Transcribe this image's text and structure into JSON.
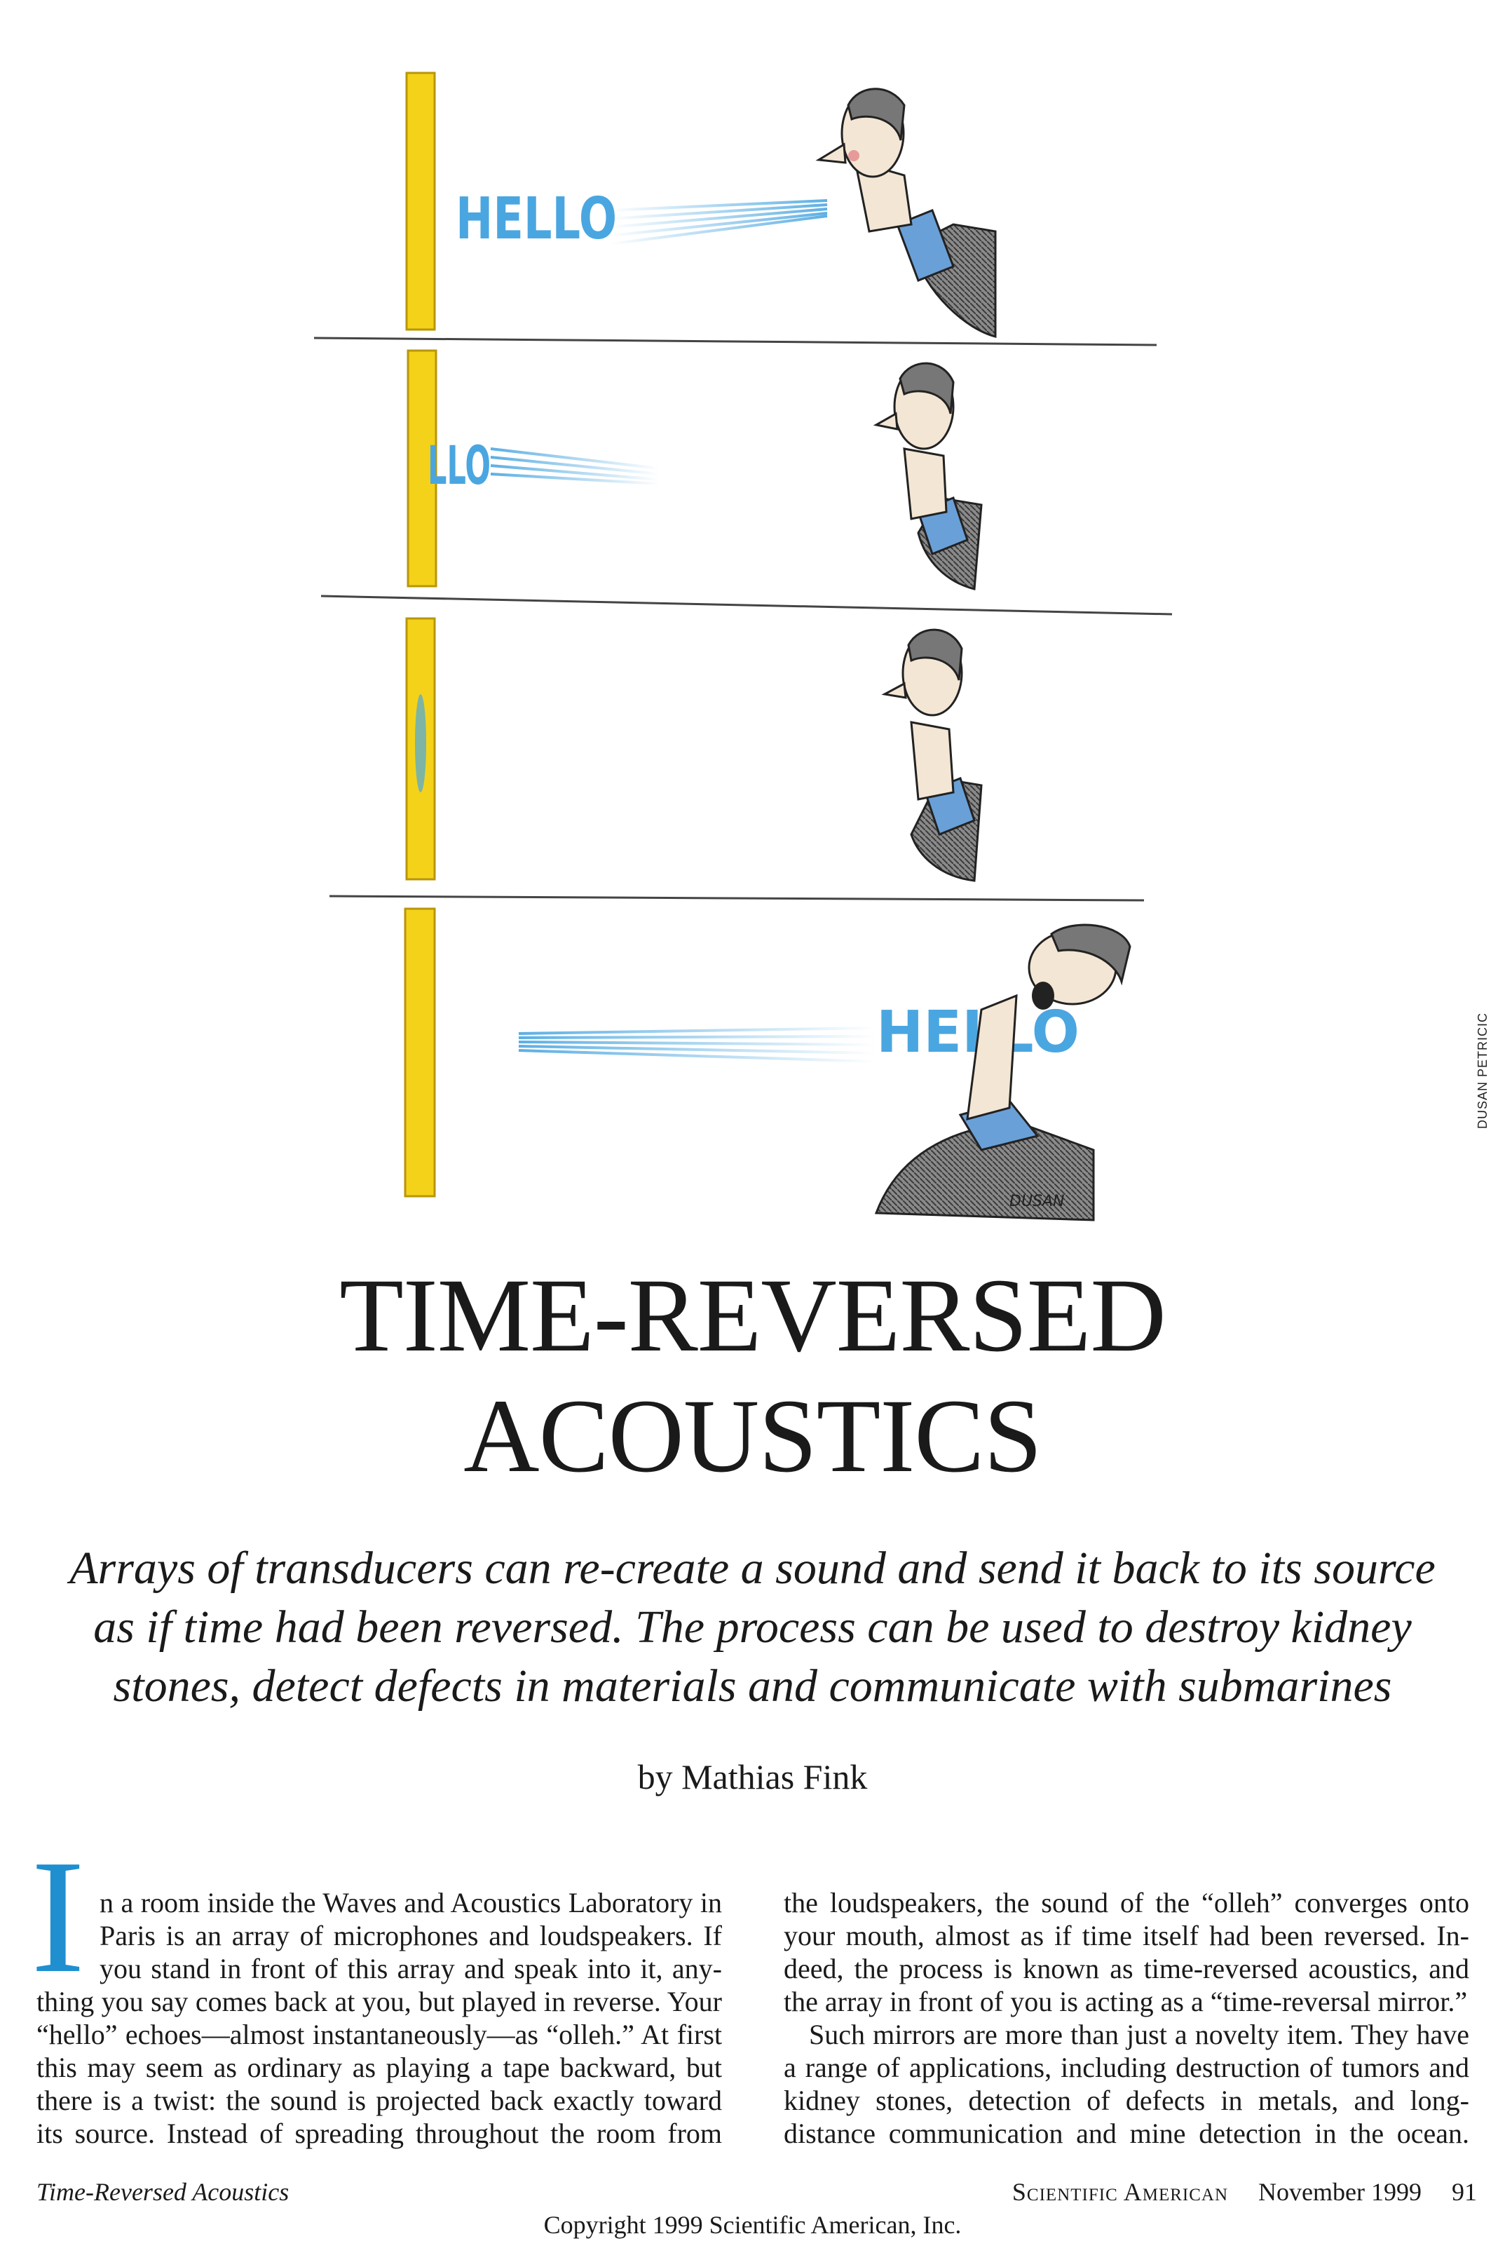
{
  "illustration": {
    "panel_text": [
      "HELLO",
      "LLO",
      "HELLO"
    ],
    "signature": "DUSAN",
    "colors": {
      "mirror": "#f5d21a",
      "letters": "#4aa6e0",
      "shirt": "#6aa0d8",
      "jacket": "#6b6b6b"
    }
  },
  "credit": "DUSAN PETRICIC",
  "title": {
    "line1": "TIME-REVERSED",
    "line2": "ACOUSTICS"
  },
  "deck": {
    "line1": "Arrays of transducers can re-create a sound and send it back to its source",
    "line2": "as if time had been reversed. The process can be used to destroy kidney",
    "line3": "stones, detect defects in materials and communicate with submarines"
  },
  "byline": "by Mathias Fink",
  "body": {
    "drop_cap": "I",
    "left": [
      "n a room inside the Waves and Acoustics Laboratory in",
      "Paris is an array of microphones and loudspeakers. If",
      "you stand in front of this array and speak into it, any-",
      "thing you say comes back at you, but played in reverse. Your",
      "“hello” echoes—almost instantaneously—as “olleh.” At first",
      "this may seem as ordinary as playing a tape backward, but",
      "there is a twist: the sound is projected back exactly toward",
      "its source. Instead of spreading throughout the room from"
    ],
    "right": [
      "the loudspeakers, the sound of the “olleh” converges onto",
      "your mouth, almost as if time itself had been reversed. In-",
      "deed, the process is known as time-reversed acoustics, and",
      "the array in front of you is acting as a “time-reversal mirror.”",
      "Such mirrors are more than just a novelty item. They have",
      "a range of applications, including destruction of tumors and",
      "kidney stones, detection of defects in metals, and long-",
      "distance communication and mine detection in the ocean."
    ]
  },
  "footer": {
    "running_title": "Time-Reversed Acoustics",
    "publication": "Scientific American",
    "date": "November 1999",
    "page": "91",
    "copyright": "Copyright 1999 Scientific American, Inc."
  }
}
